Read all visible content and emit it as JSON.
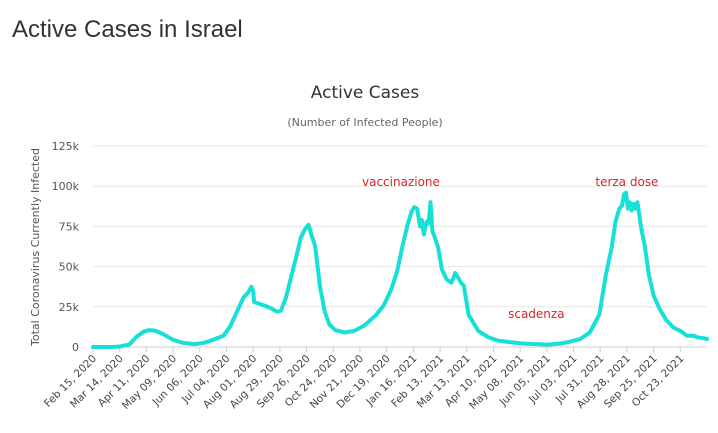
{
  "page": {
    "heading": "Active Cases in Israel"
  },
  "chart_data": {
    "type": "line",
    "title": "Active Cases",
    "subtitle": "(Number of Infected People)",
    "ylabel": "Total Coronavirus Currently Infected",
    "xlabel": "",
    "ylim": [
      0,
      125000
    ],
    "y_ticks": [
      0,
      25000,
      50000,
      75000,
      100000,
      125000
    ],
    "y_tick_labels": [
      "0",
      "25k",
      "50k",
      "75k",
      "100k",
      "125k"
    ],
    "x_range": [
      "2020-02-15",
      "2021-11-20"
    ],
    "x_tick_labels": [
      "Feb 15, 2020",
      "Mar 14, 2020",
      "Apr 11, 2020",
      "May 09, 2020",
      "Jun 06, 2020",
      "Jul 04, 2020",
      "Aug 01, 2020",
      "Aug 29, 2020",
      "Sep 26, 2020",
      "Oct 24, 2020",
      "Nov 21, 2020",
      "Dec 19, 2020",
      "Jan 16, 2021",
      "Feb 13, 2021",
      "Mar 13, 2021",
      "Apr 10, 2021",
      "May 08, 2021",
      "Jun 05, 2021",
      "Jul 03, 2021",
      "Jul 31, 2021",
      "Aug 28, 2021",
      "Sep 25, 2021",
      "Oct 23, 2021"
    ],
    "grid": true,
    "legend": "none",
    "series": [
      {
        "color": "#16e0d8",
        "x": [
          "2020-02-15",
          "2020-03-05",
          "2020-03-14",
          "2020-03-24",
          "2020-04-01",
          "2020-04-08",
          "2020-04-14",
          "2020-04-20",
          "2020-04-28",
          "2020-05-09",
          "2020-05-20",
          "2020-06-01",
          "2020-06-10",
          "2020-06-20",
          "2020-07-01",
          "2020-07-08",
          "2020-07-15",
          "2020-07-22",
          "2020-07-27",
          "2020-07-30",
          "2020-08-01",
          "2020-08-02",
          "2020-08-07",
          "2020-08-14",
          "2020-08-20",
          "2020-08-26",
          "2020-08-30",
          "2020-09-04",
          "2020-09-10",
          "2020-09-16",
          "2020-09-20",
          "2020-09-24",
          "2020-09-28",
          "2020-10-02",
          "2020-10-05",
          "2020-10-10",
          "2020-10-15",
          "2020-10-20",
          "2020-10-26",
          "2020-11-05",
          "2020-11-15",
          "2020-11-26",
          "2020-12-08",
          "2020-12-16",
          "2020-12-24",
          "2020-12-30",
          "2021-01-05",
          "2021-01-10",
          "2021-01-14",
          "2021-01-17",
          "2021-01-20",
          "2021-01-23",
          "2021-01-25",
          "2021-01-27",
          "2021-01-30",
          "2021-02-01",
          "2021-02-03",
          "2021-02-05",
          "2021-02-07",
          "2021-02-11",
          "2021-02-15",
          "2021-02-20",
          "2021-02-25",
          "2021-03-01",
          "2021-03-04",
          "2021-03-07",
          "2021-03-10",
          "2021-03-15",
          "2021-03-25",
          "2021-04-05",
          "2021-04-15",
          "2021-04-28",
          "2021-05-10",
          "2021-05-25",
          "2021-06-05",
          "2021-06-20",
          "2021-06-30",
          "2021-07-10",
          "2021-07-20",
          "2021-07-30",
          "2021-08-06",
          "2021-08-12",
          "2021-08-16",
          "2021-08-20",
          "2021-08-23",
          "2021-08-25",
          "2021-08-27",
          "2021-08-29",
          "2021-08-31",
          "2021-09-02",
          "2021-09-04",
          "2021-09-06",
          "2021-09-08",
          "2021-09-10",
          "2021-09-12",
          "2021-09-16",
          "2021-09-20",
          "2021-09-25",
          "2021-10-01",
          "2021-10-08",
          "2021-10-16",
          "2021-10-23",
          "2021-10-30",
          "2021-11-06",
          "2021-11-10",
          "2021-11-16",
          "2021-11-20"
        ],
        "values": [
          0,
          0,
          300,
          1500,
          6500,
          9500,
          10500,
          10200,
          8200,
          4500,
          2500,
          1800,
          2500,
          4500,
          7000,
          13000,
          22000,
          31000,
          34000,
          37500,
          35000,
          28000,
          27000,
          25500,
          24000,
          22000,
          22500,
          30000,
          44000,
          58000,
          68000,
          73000,
          76000,
          68000,
          63000,
          38000,
          22000,
          14000,
          10500,
          9000,
          10000,
          13500,
          20000,
          26000,
          36000,
          47000,
          64000,
          76000,
          84000,
          87000,
          86000,
          75000,
          79000,
          70000,
          78000,
          77000,
          90000,
          72000,
          69000,
          62000,
          48000,
          42000,
          40000,
          46000,
          43000,
          40000,
          38000,
          20000,
          10000,
          6000,
          4000,
          3000,
          2200,
          1800,
          1500,
          2200,
          3500,
          5000,
          9000,
          20000,
          45000,
          62000,
          78000,
          86000,
          88000,
          95000,
          96000,
          86000,
          90000,
          85000,
          89000,
          86000,
          90000,
          82000,
          74000,
          62000,
          45000,
          32000,
          24000,
          17000,
          12000,
          10000,
          7000,
          7000,
          6000,
          5500,
          5000
        ]
      }
    ],
    "annotations": [
      {
        "text": "vaccinazione",
        "x": "2021-01-03",
        "y": 100000,
        "color": "#d62728"
      },
      {
        "text": "scadenza",
        "x": "2021-05-25",
        "y": 18000,
        "color": "#d62728"
      },
      {
        "text": "terza dose",
        "x": "2021-08-28",
        "y": 100000,
        "color": "#d62728"
      }
    ]
  }
}
